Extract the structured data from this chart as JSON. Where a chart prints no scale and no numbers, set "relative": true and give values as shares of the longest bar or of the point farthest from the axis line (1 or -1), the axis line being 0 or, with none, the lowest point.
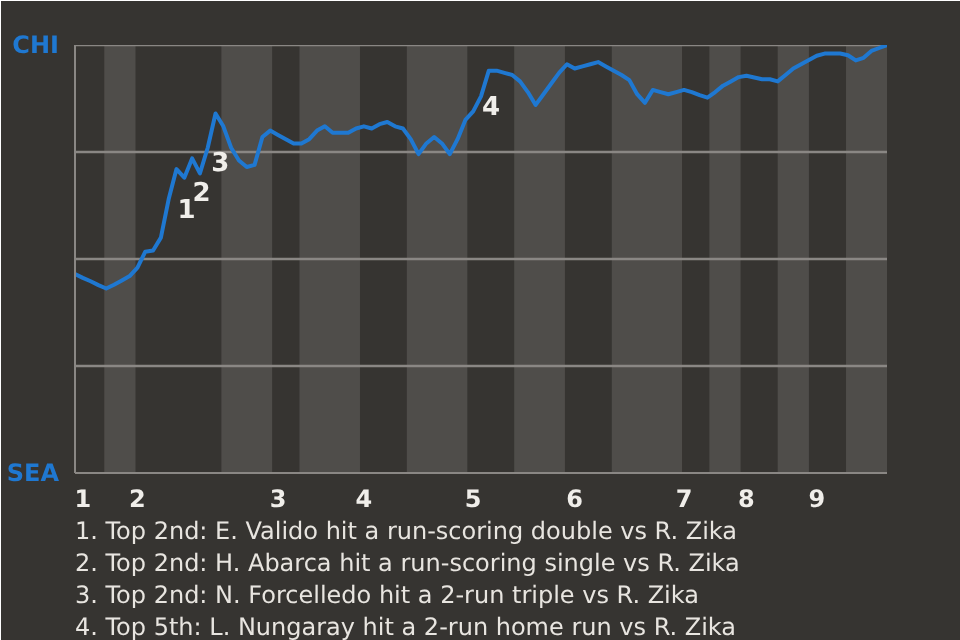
{
  "chart_data": {
    "type": "line",
    "relative": true,
    "categories": [
      null,
      "1",
      null,
      null,
      null,
      null,
      null,
      null,
      "2",
      null,
      null,
      null,
      null,
      null,
      null,
      null,
      null,
      null,
      null,
      null,
      null,
      null,
      null,
      null,
      null,
      null,
      "3",
      null,
      null,
      null,
      null,
      null,
      null,
      null,
      null,
      null,
      null,
      "4",
      null,
      null,
      null,
      null,
      null,
      null,
      null,
      null,
      null,
      null,
      null,
      null,
      null,
      "5",
      null,
      null,
      null,
      null,
      null,
      null,
      null,
      null,
      null,
      null,
      null,
      null,
      "6",
      null,
      null,
      null,
      null,
      null,
      null,
      null,
      null,
      null,
      null,
      null,
      null,
      null,
      "7",
      null,
      null,
      null,
      null,
      null,
      null,
      null,
      "8",
      null,
      null,
      null,
      null,
      null,
      null,
      null,
      null,
      "9",
      null,
      null,
      null,
      null,
      null,
      null,
      null,
      null,
      null
    ],
    "series": [
      {
        "color": "#1f78d1",
        "values": [
          0.465,
          0.456,
          0.448,
          0.439,
          0.431,
          0.44,
          0.45,
          0.46,
          0.48,
          0.517,
          0.52,
          0.55,
          0.64,
          0.71,
          0.69,
          0.735,
          0.7,
          0.76,
          0.84,
          0.81,
          0.76,
          0.73,
          0.715,
          0.72,
          0.785,
          0.8,
          0.79,
          0.78,
          0.77,
          0.77,
          0.78,
          0.8,
          0.81,
          0.795,
          0.795,
          0.795,
          0.805,
          0.81,
          0.805,
          0.815,
          0.82,
          0.81,
          0.805,
          0.78,
          0.745,
          0.77,
          0.785,
          0.77,
          0.745,
          0.78,
          0.825,
          0.845,
          0.88,
          0.94,
          0.94,
          0.935,
          0.93,
          0.915,
          0.89,
          0.86,
          0.885,
          0.91,
          0.935,
          0.955,
          0.945,
          0.95,
          0.955,
          0.96,
          0.95,
          0.94,
          0.93,
          0.918,
          0.885,
          0.865,
          0.895,
          0.89,
          0.885,
          0.89,
          0.895,
          0.89,
          0.883,
          0.877,
          0.89,
          0.905,
          0.915,
          0.925,
          0.928,
          0.924,
          0.92,
          0.92,
          0.915,
          0.93,
          0.945,
          0.955,
          0.965,
          0.975,
          0.98,
          0.98,
          0.98,
          0.976,
          0.964,
          0.97,
          0.986,
          0.993,
          1.0
        ],
        "name": null
      }
    ],
    "marker": "none",
    "line_style": "solid",
    "ref_lines": [
      {
        "axis": "y",
        "value": 0.25,
        "color": "#8a8784"
      },
      {
        "axis": "y",
        "value": 0.5,
        "color": "#8a8784"
      },
      {
        "axis": "y",
        "value": 0.75,
        "color": "#8a8784"
      },
      {
        "axis": "y",
        "value": 1,
        "color": "#8a8784"
      }
    ],
    "annotations": [
      "1",
      "2",
      "3",
      "4",
      "CHI",
      "SEA",
      "1. Top 2nd: E. Valido hit a run-scoring double vs R. Zika",
      "2. Top 2nd: H. Abarca hit a run-scoring single vs R. Zika",
      "3. Top 2nd: N. Forcelledo hit a 2-run triple vs R. Zika",
      "4. Top 5th: L. Nungaray hit a 2-run home run vs R. Zika"
    ]
  }
}
